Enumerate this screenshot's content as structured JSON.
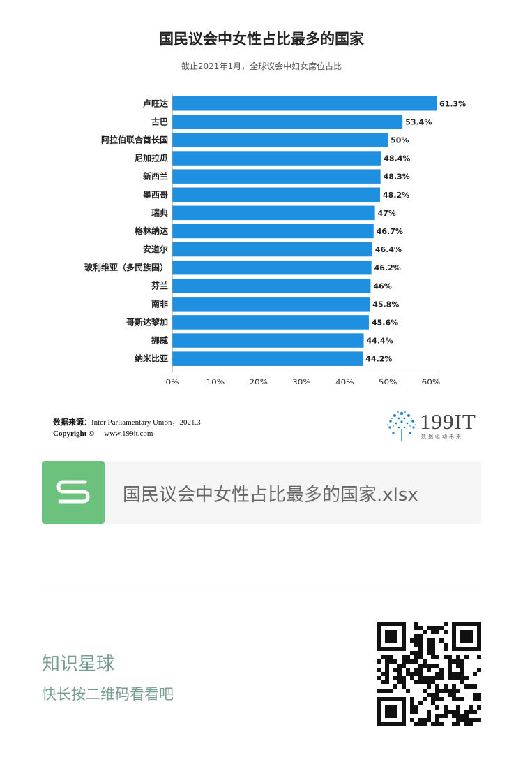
{
  "title": "国民议会中女性占比最多的国家",
  "subtitle": "截止2021年1月，全球议会中妇女席位占比",
  "chart_data": {
    "type": "bar",
    "orientation": "horizontal",
    "categories": [
      "卢旺达",
      "古巴",
      "阿拉伯联合酋长国",
      "尼加拉瓜",
      "新西兰",
      "墨西哥",
      "瑞典",
      "格林纳达",
      "安道尔",
      "玻利维亚（多民族国）",
      "芬兰",
      "南非",
      "哥斯达黎加",
      "挪威",
      "纳米比亚"
    ],
    "values": [
      61.3,
      53.4,
      50,
      48.4,
      48.3,
      48.2,
      47,
      46.7,
      46.4,
      46.2,
      46,
      45.8,
      45.6,
      44.4,
      44.2
    ],
    "value_labels": [
      "61.3%",
      "53.4%",
      "50%",
      "48.4%",
      "48.3%",
      "48.2%",
      "47%",
      "46.7%",
      "46.4%",
      "46.2%",
      "46%",
      "45.8%",
      "45.6%",
      "44.4%",
      "44.2%"
    ],
    "x_ticks": [
      "0%",
      "10%",
      "20%",
      "30%",
      "40%",
      "50%",
      "60%"
    ],
    "xlim": [
      0,
      60
    ],
    "bar_color": "#1f8fe0",
    "grid": false
  },
  "source": {
    "label": "数据来源：",
    "text": "Inter Parliamentary Union，2021.3"
  },
  "copyright": {
    "label": "Copyright ©",
    "url": "www.199it.com"
  },
  "logo": {
    "text": "199IT",
    "subtext": "数据驱动未来"
  },
  "file": {
    "icon_letter": "S",
    "name": "国民议会中女性占比最多的国家.xlsx",
    "icon_color": "#6cc27c"
  },
  "planet": {
    "title": "知识星球",
    "subtitle": "快长按二维码看看吧"
  }
}
